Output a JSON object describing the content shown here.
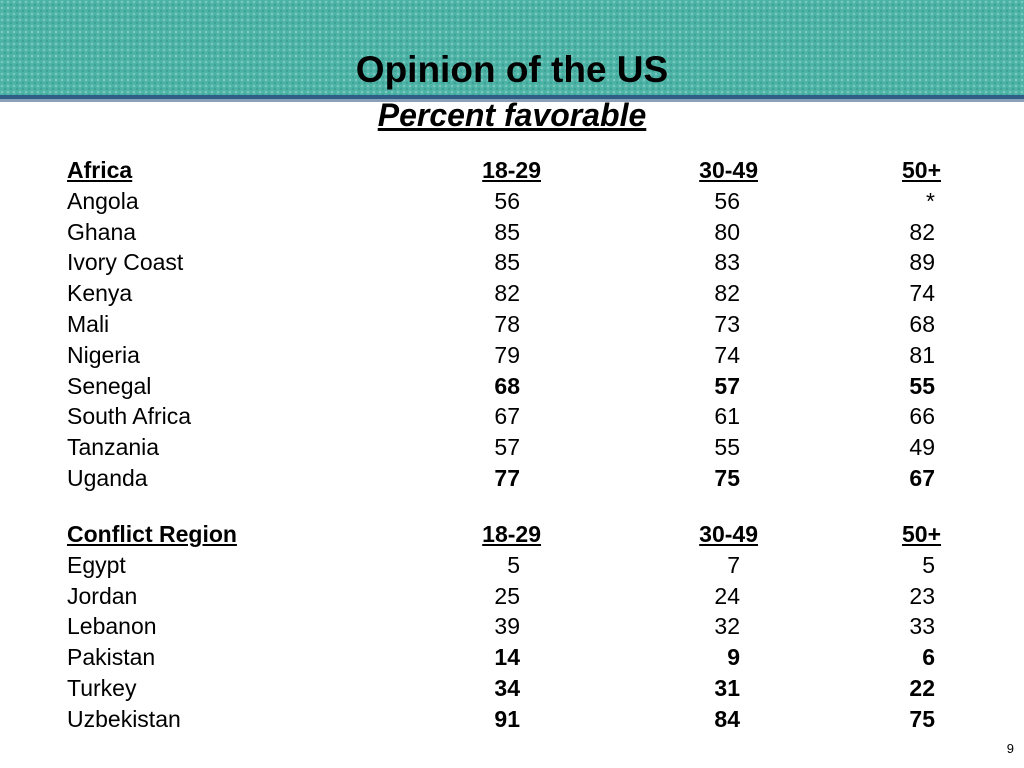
{
  "slide": {
    "title": "Opinion of the US",
    "subtitle": "Percent favorable",
    "page_number": "9"
  },
  "sections": [
    {
      "header": [
        "Africa",
        "18-29",
        "30-49",
        "50+"
      ],
      "rows": [
        {
          "cells": [
            "Angola",
            "56",
            "56",
            "*"
          ],
          "bold": false
        },
        {
          "cells": [
            "Ghana",
            "85",
            "80",
            "82"
          ],
          "bold": false
        },
        {
          "cells": [
            "Ivory Coast",
            "85",
            "83",
            "89"
          ],
          "bold": false
        },
        {
          "cells": [
            "Kenya",
            "82",
            "82",
            "74"
          ],
          "bold": false
        },
        {
          "cells": [
            "Mali",
            "78",
            "73",
            "68"
          ],
          "bold": false
        },
        {
          "cells": [
            "Nigeria",
            "79",
            "74",
            "81"
          ],
          "bold": false
        },
        {
          "cells": [
            "Senegal",
            "68",
            "57",
            "55"
          ],
          "bold": true
        },
        {
          "cells": [
            "South Africa",
            "67",
            "61",
            "66"
          ],
          "bold": false
        },
        {
          "cells": [
            "Tanzania",
            "57",
            "55",
            "49"
          ],
          "bold": false
        },
        {
          "cells": [
            "Uganda",
            "77",
            "75",
            "67"
          ],
          "bold": true
        }
      ]
    },
    {
      "header": [
        "Conflict Region",
        "18-29",
        "30-49",
        "50+"
      ],
      "rows": [
        {
          "cells": [
            "Egypt",
            "5",
            "7",
            "5"
          ],
          "bold": false
        },
        {
          "cells": [
            "Jordan",
            "25",
            "24",
            "23"
          ],
          "bold": false
        },
        {
          "cells": [
            "Lebanon",
            "39",
            "32",
            "33"
          ],
          "bold": false
        },
        {
          "cells": [
            "Pakistan",
            "14",
            "9",
            "6"
          ],
          "bold": true
        },
        {
          "cells": [
            "Turkey",
            "34",
            "31",
            "22"
          ],
          "bold": true
        },
        {
          "cells": [
            "Uzbekistan",
            "91",
            "84",
            "75"
          ],
          "bold": true
        }
      ]
    }
  ]
}
